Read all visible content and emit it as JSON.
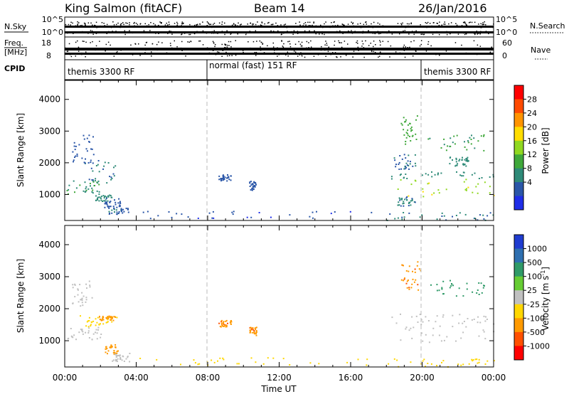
{
  "header": {
    "station": "King Salmon (fitACF)",
    "beam": "Beam 14",
    "date": "26/Jan/2016"
  },
  "status_panel": {
    "nsky_label": "N.Sky",
    "nsearch_label": "N.Search",
    "freq_label": "Freq.",
    "freq_unit": "[MHz]",
    "nave_label": "Nave",
    "cpid_label": "CPID",
    "nsky_ticks": [
      "10^5",
      "10^0"
    ],
    "nsearch_ticks": [
      "10^5",
      "10^0"
    ],
    "freq_ticks": [
      "18",
      "8"
    ],
    "nave_ticks": [
      "60",
      "0"
    ],
    "cpid_segments": [
      {
        "label": "themis 3300 RF",
        "start_h": 0,
        "end_h": 8
      },
      {
        "label": "normal (fast) 151 RF",
        "start_h": 8,
        "end_h": 20
      },
      {
        "label": "themis 3300 RF",
        "start_h": 20,
        "end_h": 24
      }
    ]
  },
  "x_axis": {
    "title": "Time UT",
    "tick_labels": [
      "00:00",
      "04:00",
      "08:00",
      "12:00",
      "16:00",
      "20:00",
      "00:00"
    ]
  },
  "power_colorbar": {
    "title": "Power [dB]",
    "labels": [
      "28",
      "24",
      "20",
      "16",
      "12",
      "8",
      "4"
    ],
    "colors": [
      "#ff0000",
      "#ff4a00",
      "#ff9400",
      "#ffdd00",
      "#90d820",
      "#3fa83a",
      "#2e8a78",
      "#2a56a8",
      "#1f2ee8"
    ]
  },
  "velocity_colorbar": {
    "title": "Velocity [m s-1]",
    "title_main": "Velocity [m s",
    "title_exp": "-1",
    "title_close": "]",
    "labels": [
      "1000",
      "500",
      "100",
      "25",
      "-25",
      "-100",
      "-500",
      "-1000"
    ],
    "colors": [
      "#1f3cd0",
      "#2e6fb0",
      "#2f9a68",
      "#66cc33",
      "#c0c0c0",
      "#ffd700",
      "#ff9a00",
      "#ff5000",
      "#ff0000"
    ]
  },
  "chart_data": [
    {
      "type": "heatmap",
      "panel": "power",
      "ylabel": "Slant Range [km]",
      "ylim": [
        180,
        4600
      ],
      "xlim": [
        0,
        24
      ],
      "y_ticks": [
        "1000",
        "2000",
        "3000",
        "4000"
      ],
      "value_range_db": [
        0,
        32
      ],
      "regions": [
        {
          "t": [
            0.1,
            1.9
          ],
          "r": [
            1000,
            1500
          ],
          "v": 10
        },
        {
          "t": [
            1.0,
            2.9
          ],
          "r": [
            1300,
            2100
          ],
          "v": 6
        },
        {
          "t": [
            0.4,
            1.6
          ],
          "r": [
            2000,
            2900
          ],
          "v": 4
        },
        {
          "t": [
            1.7,
            2.6
          ],
          "r": [
            800,
            1000
          ],
          "v": 8
        },
        {
          "t": [
            2.2,
            3.1
          ],
          "r": [
            600,
            900
          ],
          "v": 4
        },
        {
          "t": [
            2.4,
            3.6
          ],
          "r": [
            400,
            600
          ],
          "v": 5
        },
        {
          "t": [
            8.6,
            9.3
          ],
          "r": [
            1450,
            1650
          ],
          "v": 4
        },
        {
          "t": [
            10.3,
            10.7
          ],
          "r": [
            1150,
            1450
          ],
          "v": 4
        },
        {
          "t": [
            4.0,
            18.0
          ],
          "r": [
            250,
            500
          ],
          "v": 3
        },
        {
          "t": [
            18.3,
            24.0
          ],
          "r": [
            950,
            1500
          ],
          "v": 17
        },
        {
          "t": [
            18.2,
            24.0
          ],
          "r": [
            1500,
            1750
          ],
          "v": 8
        },
        {
          "t": [
            18.4,
            19.6
          ],
          "r": [
            1800,
            2300
          ],
          "v": 5
        },
        {
          "t": [
            18.8,
            19.9
          ],
          "r": [
            2600,
            3500
          ],
          "v": 12
        },
        {
          "t": [
            20.3,
            23.5
          ],
          "r": [
            2400,
            2900
          ],
          "v": 11
        },
        {
          "t": [
            21.5,
            22.6
          ],
          "r": [
            1900,
            2200
          ],
          "v": 8
        },
        {
          "t": [
            18.6,
            19.6
          ],
          "r": [
            650,
            950
          ],
          "v": 7
        },
        {
          "t": [
            18.0,
            24.0
          ],
          "r": [
            200,
            450
          ],
          "v": 6
        }
      ]
    },
    {
      "type": "heatmap",
      "panel": "velocity",
      "ylabel": "Slant Range [km]",
      "ylim": [
        180,
        4600
      ],
      "xlim": [
        0,
        24
      ],
      "y_ticks": [
        "1000",
        "2000",
        "3000",
        "4000"
      ],
      "value_range_ms": [
        -1000,
        1000
      ],
      "regions": [
        {
          "t": [
            0.1,
            2.0
          ],
          "r": [
            1050,
            1450
          ],
          "v": 0
        },
        {
          "t": [
            0.8,
            2.9
          ],
          "r": [
            1450,
            1800
          ],
          "v": -30
        },
        {
          "t": [
            0.4,
            1.5
          ],
          "r": [
            2100,
            2900
          ],
          "v": 10
        },
        {
          "t": [
            2.2,
            3.0
          ],
          "r": [
            600,
            900
          ],
          "v": -150
        },
        {
          "t": [
            1.9,
            2.8
          ],
          "r": [
            1650,
            1800
          ],
          "v": -400
        },
        {
          "t": [
            2.6,
            3.6
          ],
          "r": [
            350,
            650
          ],
          "v": 5
        },
        {
          "t": [
            8.6,
            9.3
          ],
          "r": [
            1450,
            1650
          ],
          "v": -450
        },
        {
          "t": [
            10.3,
            10.7
          ],
          "r": [
            1150,
            1450
          ],
          "v": -450
        },
        {
          "t": [
            4.0,
            18.0
          ],
          "r": [
            250,
            500
          ],
          "v": -40
        },
        {
          "t": [
            18.3,
            24.0
          ],
          "r": [
            950,
            1550
          ],
          "v": 0
        },
        {
          "t": [
            18.2,
            24.0
          ],
          "r": [
            1550,
            1850
          ],
          "v": 10
        },
        {
          "t": [
            18.8,
            19.9
          ],
          "r": [
            2600,
            3500
          ],
          "v": -450
        },
        {
          "t": [
            20.3,
            23.5
          ],
          "r": [
            2400,
            2900
          ],
          "v": 200
        },
        {
          "t": [
            18.0,
            24.0
          ],
          "r": [
            200,
            450
          ],
          "v": -60
        }
      ]
    }
  ]
}
